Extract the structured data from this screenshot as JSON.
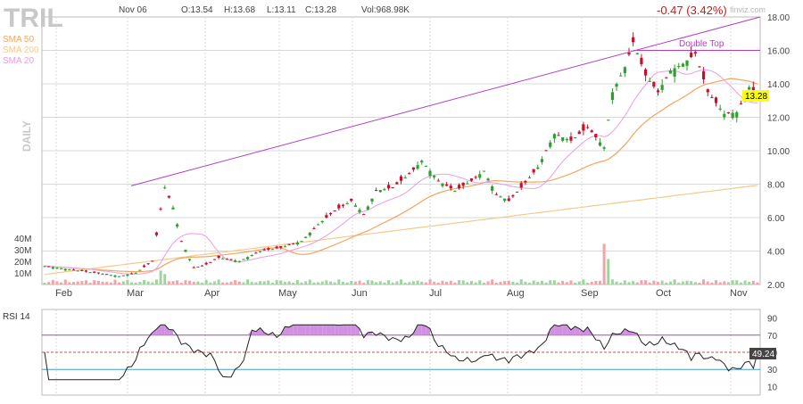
{
  "header": {
    "ticker": "TRIL",
    "date": "Nov 06",
    "open": "O:13.54",
    "high": "H:13.68",
    "low": "L:13.11",
    "close": "C:13.28",
    "volume": "Vol:968.98K",
    "change": "-0.47 (3.42%)",
    "watermark": "finviz.com",
    "period": "DAILY"
  },
  "legend": [
    {
      "label": "SMA 50",
      "color": "#f4a460"
    },
    {
      "label": "SMA 200",
      "color": "#f5c98c"
    },
    {
      "label": "SMA 20",
      "color": "#e89ee0"
    }
  ],
  "annotations": {
    "double_top": "Double Top",
    "last_price": "13.28",
    "last_rsi": "49.24"
  },
  "colors": {
    "up": "#2ea02e",
    "down": "#c8102e",
    "trendline": "#b040c0",
    "grid": "#d8d8d8",
    "rsi_line": "#222222",
    "rsi_fill": "#d090e0",
    "rsi_30": "#40a0c0",
    "price_badge": "#ffff00"
  },
  "chart_data": {
    "type": "candlestick",
    "y_axis": {
      "ticks": [
        "2.00",
        "4.00",
        "6.00",
        "8.00",
        "10.00",
        "12.00",
        "14.00",
        "16.00",
        "18.00"
      ],
      "range": [
        2,
        18
      ]
    },
    "volume_axis": {
      "ticks": [
        "10M",
        "20M",
        "30M",
        "40M"
      ]
    },
    "x_axis": {
      "months": [
        "Feb",
        "Mar",
        "Apr",
        "May",
        "Jun",
        "Jul",
        "Aug",
        "Sep",
        "Oct",
        "Nov"
      ]
    },
    "rsi": {
      "label": "RSI 14",
      "ticks": [
        "10",
        "30",
        "50",
        "70",
        "90"
      ],
      "range": [
        0,
        100
      ],
      "last": 49.24
    },
    "trendlines": [
      {
        "name": "rising-resistance",
        "from": [
          8.0,
          7.9
        ],
        "to": [
          18.0,
          18.0
        ]
      },
      {
        "name": "double-top",
        "level": 16.0
      }
    ],
    "close_keypoints": [
      [
        0,
        3.1
      ],
      [
        6,
        2.9
      ],
      [
        12,
        2.7
      ],
      [
        18,
        2.5
      ],
      [
        22,
        2.7
      ],
      [
        26,
        3.4
      ],
      [
        28,
        6.5
      ],
      [
        29,
        7.8
      ],
      [
        31,
        6.6
      ],
      [
        33,
        4.6
      ],
      [
        36,
        3.0
      ],
      [
        39,
        3.2
      ],
      [
        42,
        3.6
      ],
      [
        47,
        3.4
      ],
      [
        52,
        4.0
      ],
      [
        57,
        4.2
      ],
      [
        62,
        4.6
      ],
      [
        66,
        5.6
      ],
      [
        70,
        6.4
      ],
      [
        74,
        7.0
      ],
      [
        77,
        6.2
      ],
      [
        80,
        7.6
      ],
      [
        84,
        7.8
      ],
      [
        88,
        8.6
      ],
      [
        91,
        9.4
      ],
      [
        95,
        8.2
      ],
      [
        99,
        7.6
      ],
      [
        103,
        8.2
      ],
      [
        106,
        8.8
      ],
      [
        109,
        7.4
      ],
      [
        112,
        7.0
      ],
      [
        115,
        7.8
      ],
      [
        119,
        9.0
      ],
      [
        123,
        11.0
      ],
      [
        127,
        10.6
      ],
      [
        131,
        11.4
      ],
      [
        135,
        10.2
      ],
      [
        137,
        13.5
      ],
      [
        140,
        15.0
      ],
      [
        142,
        16.5
      ],
      [
        145,
        14.5
      ],
      [
        148,
        13.5
      ],
      [
        151,
        14.8
      ],
      [
        154,
        15.2
      ],
      [
        157,
        15.8
      ],
      [
        160,
        13.5
      ],
      [
        164,
        12.2
      ],
      [
        167,
        12.3
      ],
      [
        170,
        13.8
      ],
      [
        172,
        13.28
      ]
    ],
    "volume_spikes": [
      {
        "day": 28,
        "millions": 12
      },
      {
        "day": 29,
        "millions": 9
      },
      {
        "day": 135,
        "millions": 35
      },
      {
        "day": 136,
        "millions": 22
      }
    ]
  }
}
